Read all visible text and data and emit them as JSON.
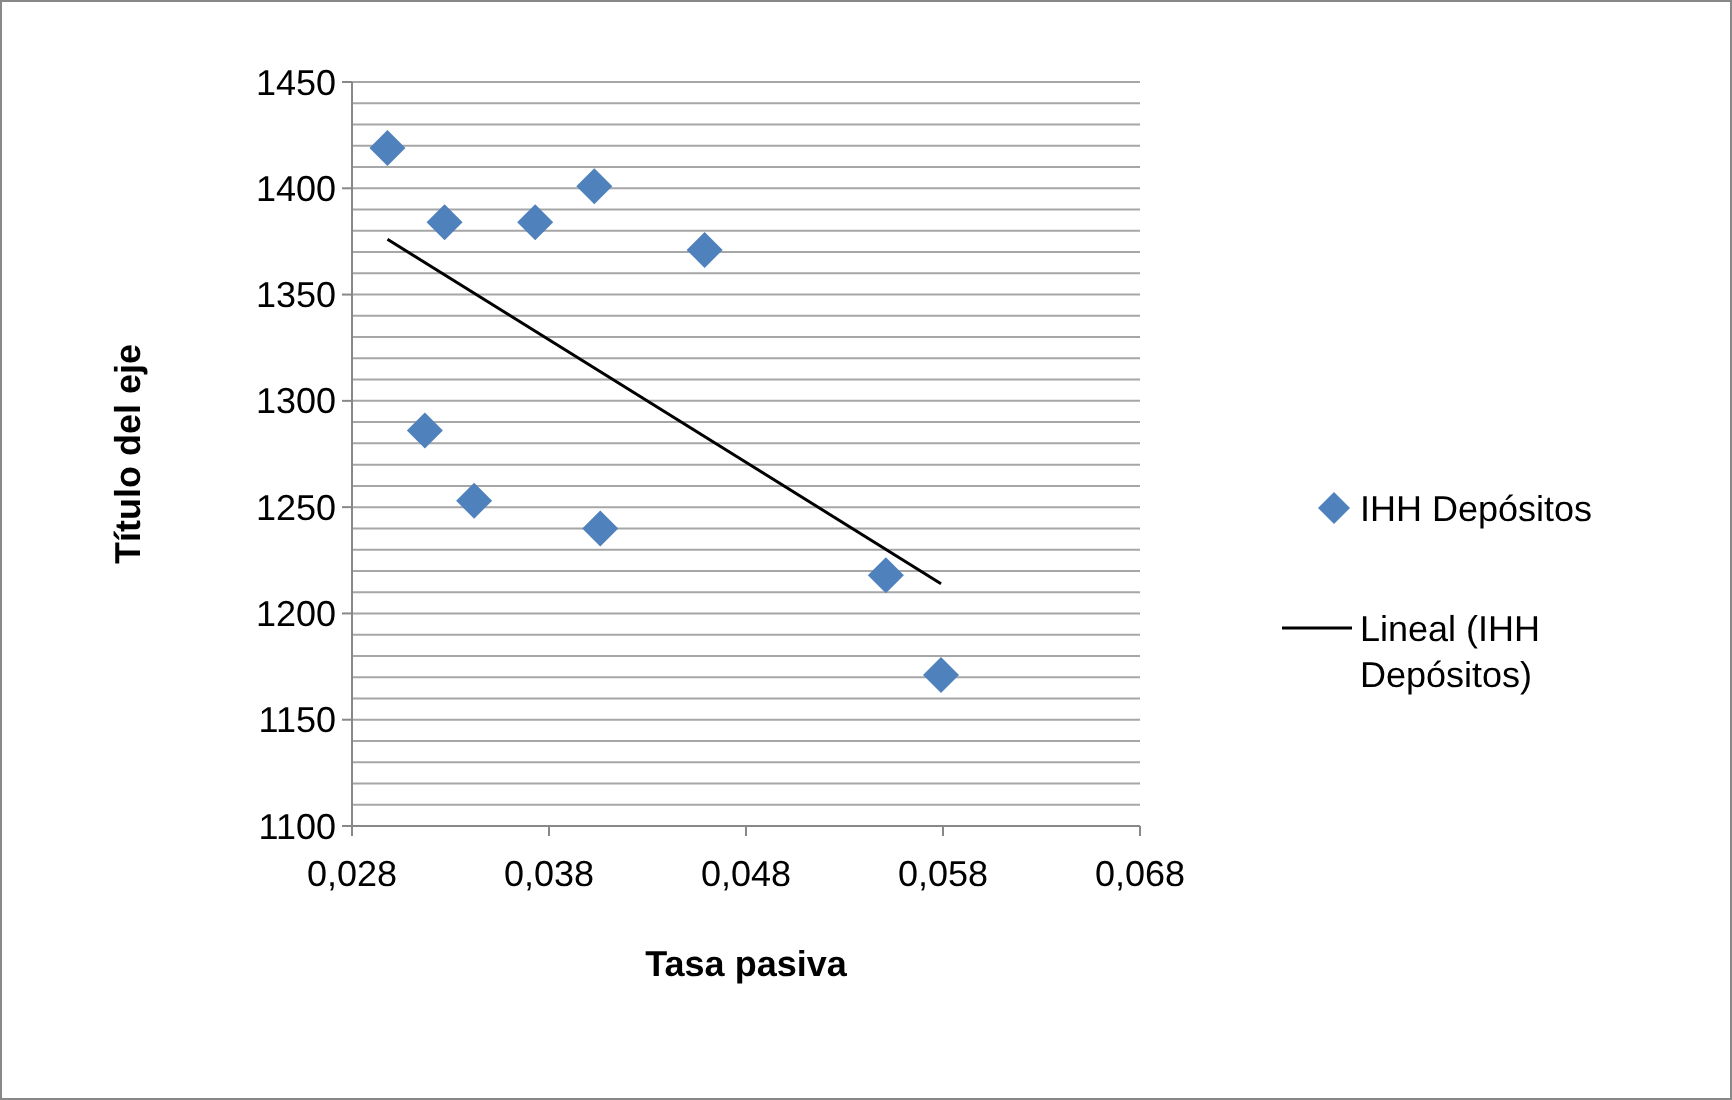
{
  "chart_data": {
    "type": "scatter",
    "xlabel": "Tasa pasiva",
    "ylabel": "Título del eje",
    "xlim": [
      0.028,
      0.068
    ],
    "xticks": [
      {
        "value": 0.028,
        "label": "0,028"
      },
      {
        "value": 0.038,
        "label": "0,038"
      },
      {
        "value": 0.048,
        "label": "0,048"
      },
      {
        "value": 0.058,
        "label": "0,058"
      },
      {
        "value": 0.068,
        "label": "0,068"
      }
    ],
    "ylim": [
      1100,
      1450
    ],
    "yticks": [
      1100,
      {
        "value": 1110,
        "label": null
      },
      {
        "value": 1120,
        "label": null
      },
      {
        "value": 1130,
        "label": null
      },
      {
        "value": 1140,
        "label": null
      },
      1150,
      {
        "value": 1160,
        "label": null
      },
      {
        "value": 1170,
        "label": null
      },
      {
        "value": 1180,
        "label": null
      },
      {
        "value": 1190,
        "label": null
      },
      1200,
      {
        "value": 1210,
        "label": null
      },
      {
        "value": 1220,
        "label": null
      },
      {
        "value": 1230,
        "label": null
      },
      {
        "value": 1240,
        "label": null
      },
      1250,
      {
        "value": 1260,
        "label": null
      },
      {
        "value": 1270,
        "label": null
      },
      {
        "value": 1280,
        "label": null
      },
      {
        "value": 1290,
        "label": null
      },
      1300,
      {
        "value": 1310,
        "label": null
      },
      {
        "value": 1320,
        "label": null
      },
      {
        "value": 1330,
        "label": null
      },
      {
        "value": 1340,
        "label": null
      },
      1350,
      {
        "value": 1360,
        "label": null
      },
      {
        "value": 1370,
        "label": null
      },
      {
        "value": 1380,
        "label": null
      },
      {
        "value": 1390,
        "label": null
      },
      1400,
      {
        "value": 1410,
        "label": null
      },
      {
        "value": 1420,
        "label": null
      },
      {
        "value": 1430,
        "label": null
      },
      {
        "value": 1440,
        "label": null
      },
      1450
    ],
    "grid": "y",
    "legend": "right",
    "marker": "diamond",
    "series": [
      {
        "name": "IHH Depósitos",
        "color": "#4f81bd",
        "x": [
          0.0298,
          0.0327,
          0.0373,
          0.0403,
          0.0459,
          0.0317,
          0.0342,
          0.0406,
          0.0551,
          0.0579
        ],
        "values": [
          1419,
          1384,
          1384,
          1401,
          1371,
          1286,
          1253,
          1240,
          1218,
          1171
        ]
      },
      {
        "name": "Lineal (IHH Depósitos)",
        "type": "line",
        "color": "#000000",
        "marker": "none",
        "line_style": "solid",
        "x": [
          0.0298,
          0.0579
        ],
        "values": [
          1376,
          1214
        ]
      }
    ]
  }
}
